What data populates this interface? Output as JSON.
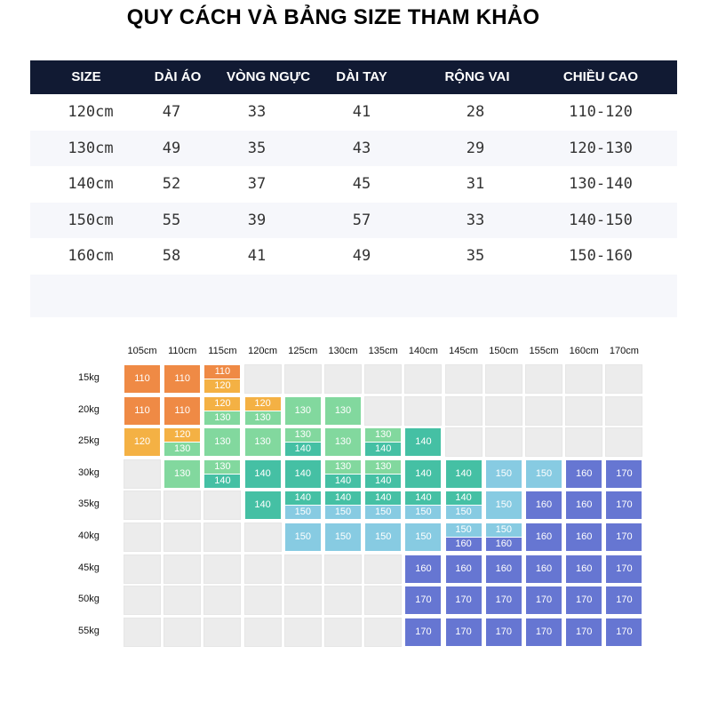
{
  "title": "QUY CÁCH VÀ BẢNG SIZE THAM KHẢO",
  "size_table": {
    "headers": [
      "SIZE",
      "DÀI ÁO",
      "VÒNG NGỰC",
      "DÀI TAY",
      "RỘNG VAI",
      "CHIỀU CAO"
    ],
    "rows": [
      [
        "120cm",
        "47",
        "33",
        "41",
        "28",
        "110-120"
      ],
      [
        "130cm",
        "49",
        "35",
        "43",
        "29",
        "120-130"
      ],
      [
        "140cm",
        "52",
        "37",
        "45",
        "31",
        "130-140"
      ],
      [
        "150cm",
        "55",
        "39",
        "57",
        "33",
        "140-150"
      ],
      [
        "160cm",
        "58",
        "41",
        "49",
        "35",
        "150-160"
      ]
    ]
  },
  "size_grid": {
    "heights": [
      "105cm",
      "110cm",
      "115cm",
      "120cm",
      "125cm",
      "130cm",
      "135cm",
      "140cm",
      "145cm",
      "150cm",
      "155cm",
      "160cm",
      "170cm"
    ],
    "weights": [
      "15kg",
      "20kg",
      "25kg",
      "30kg",
      "35kg",
      "40kg",
      "45kg",
      "50kg",
      "55kg"
    ],
    "cells": [
      [
        [
          "110"
        ],
        [
          "110"
        ],
        [
          "110",
          "120"
        ],
        [],
        [],
        [],
        [],
        [],
        [],
        [],
        [],
        [],
        []
      ],
      [
        [
          "110"
        ],
        [
          "110"
        ],
        [
          "120",
          "130"
        ],
        [
          "120",
          "130"
        ],
        [
          "130"
        ],
        [
          "130"
        ],
        [],
        [],
        [],
        [],
        [],
        [],
        []
      ],
      [
        [
          "120"
        ],
        [
          "120",
          "130"
        ],
        [
          "130"
        ],
        [
          "130"
        ],
        [
          "130",
          "140"
        ],
        [
          "130"
        ],
        [
          "130",
          "140"
        ],
        [
          "140"
        ],
        [],
        [],
        [],
        [],
        []
      ],
      [
        [],
        [
          "130"
        ],
        [
          "130",
          "140"
        ],
        [
          "140"
        ],
        [
          "140"
        ],
        [
          "130",
          "140"
        ],
        [
          "130",
          "140"
        ],
        [
          "140"
        ],
        [
          "140"
        ],
        [
          "150"
        ],
        [
          "150"
        ],
        [
          "160"
        ],
        [
          "170"
        ]
      ],
      [
        [],
        [],
        [],
        [
          "140"
        ],
        [
          "140",
          "150"
        ],
        [
          "140",
          "150"
        ],
        [
          "140",
          "150"
        ],
        [
          "140",
          "150"
        ],
        [
          "140",
          "150"
        ],
        [
          "150"
        ],
        [
          "160"
        ],
        [
          "160"
        ],
        [
          "170"
        ]
      ],
      [
        [],
        [],
        [],
        [],
        [
          "150"
        ],
        [
          "150"
        ],
        [
          "150"
        ],
        [
          "150"
        ],
        [
          "150",
          "160"
        ],
        [
          "150",
          "160"
        ],
        [
          "160"
        ],
        [
          "160"
        ],
        [
          "170"
        ]
      ],
      [
        [],
        [],
        [],
        [],
        [],
        [],
        [],
        [
          "160"
        ],
        [
          "160"
        ],
        [
          "160"
        ],
        [
          "160"
        ],
        [
          "160"
        ],
        [
          "170"
        ]
      ],
      [
        [],
        [],
        [],
        [],
        [],
        [],
        [],
        [
          "170"
        ],
        [
          "170"
        ],
        [
          "170"
        ],
        [
          "170"
        ],
        [
          "170"
        ],
        [
          "170"
        ]
      ],
      [
        [],
        [],
        [],
        [],
        [],
        [],
        [],
        [
          "170"
        ],
        [
          "170"
        ],
        [
          "170"
        ],
        [
          "170"
        ],
        [
          "170"
        ],
        [
          "170"
        ]
      ]
    ],
    "size_colors": {
      "110": "#ef8a45",
      "120": "#f4b144",
      "130": "#82d89e",
      "140": "#45c0a4",
      "150": "#87cbe2",
      "160": "#6676d2",
      "170": "#6676d2"
    },
    "empty_color": "#ececec"
  }
}
